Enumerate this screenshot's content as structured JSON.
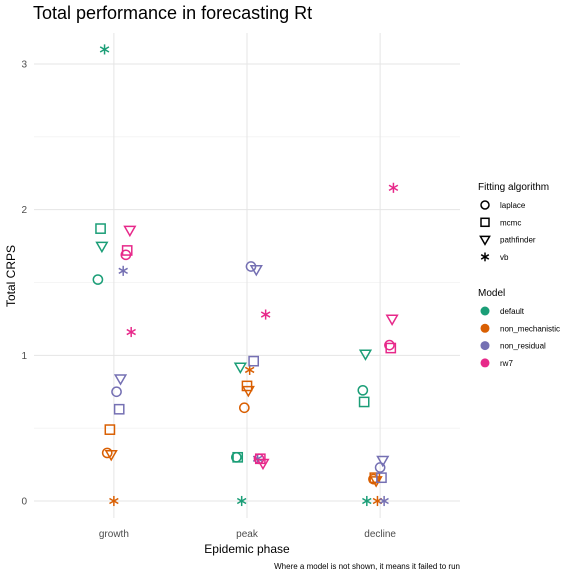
{
  "chart_data": {
    "type": "scatter",
    "title": "Total performance in forecasting Rt",
    "xlabel": "Epidemic phase",
    "ylabel": "Total CRPS",
    "caption": "Where a model is not shown, it means it failed to run",
    "categories": [
      "growth",
      "peak",
      "decline"
    ],
    "ylim": [
      -0.1,
      3.3
    ],
    "yticks": [
      0,
      1,
      2,
      3
    ],
    "grid": true,
    "legend_position": "right",
    "legend": {
      "shape_title": "Fitting algorithm",
      "shapes": [
        {
          "name": "laplace",
          "shape": "circle"
        },
        {
          "name": "mcmc",
          "shape": "square"
        },
        {
          "name": "pathfinder",
          "shape": "triangle-down"
        },
        {
          "name": "vb",
          "shape": "asterisk"
        }
      ],
      "color_title": "Model",
      "colors": [
        {
          "name": "default",
          "color": "#1b9e77"
        },
        {
          "name": "non_mechanistic",
          "color": "#d95f02"
        },
        {
          "name": "non_residual",
          "color": "#7570b3"
        },
        {
          "name": "rw7",
          "color": "#e7298a"
        }
      ]
    },
    "points": [
      {
        "phase": "growth",
        "x": 0.88,
        "y": 1.52,
        "model": "default",
        "algorithm": "laplace"
      },
      {
        "phase": "growth",
        "x": 0.9,
        "y": 1.87,
        "model": "default",
        "algorithm": "mcmc"
      },
      {
        "phase": "growth",
        "x": 0.91,
        "y": 1.75,
        "model": "default",
        "algorithm": "pathfinder"
      },
      {
        "phase": "growth",
        "x": 0.93,
        "y": 3.1,
        "model": "default",
        "algorithm": "vb"
      },
      {
        "phase": "growth",
        "x": 0.95,
        "y": 0.33,
        "model": "non_mechanistic",
        "algorithm": "laplace"
      },
      {
        "phase": "growth",
        "x": 0.97,
        "y": 0.49,
        "model": "non_mechanistic",
        "algorithm": "mcmc"
      },
      {
        "phase": "growth",
        "x": 0.98,
        "y": 0.32,
        "model": "non_mechanistic",
        "algorithm": "pathfinder"
      },
      {
        "phase": "growth",
        "x": 1.0,
        "y": 0.0,
        "model": "non_mechanistic",
        "algorithm": "vb"
      },
      {
        "phase": "growth",
        "x": 1.02,
        "y": 0.75,
        "model": "non_residual",
        "algorithm": "laplace"
      },
      {
        "phase": "growth",
        "x": 1.04,
        "y": 0.63,
        "model": "non_residual",
        "algorithm": "mcmc"
      },
      {
        "phase": "growth",
        "x": 1.05,
        "y": 0.84,
        "model": "non_residual",
        "algorithm": "pathfinder"
      },
      {
        "phase": "growth",
        "x": 1.07,
        "y": 1.58,
        "model": "non_residual",
        "algorithm": "vb"
      },
      {
        "phase": "growth",
        "x": 1.09,
        "y": 1.69,
        "model": "rw7",
        "algorithm": "laplace"
      },
      {
        "phase": "growth",
        "x": 1.1,
        "y": 1.72,
        "model": "rw7",
        "algorithm": "mcmc"
      },
      {
        "phase": "growth",
        "x": 1.12,
        "y": 1.86,
        "model": "rw7",
        "algorithm": "pathfinder"
      },
      {
        "phase": "growth",
        "x": 1.13,
        "y": 1.16,
        "model": "rw7",
        "algorithm": "vb"
      },
      {
        "phase": "peak",
        "x": 1.92,
        "y": 0.3,
        "model": "default",
        "algorithm": "laplace"
      },
      {
        "phase": "peak",
        "x": 1.93,
        "y": 0.3,
        "model": "default",
        "algorithm": "mcmc"
      },
      {
        "phase": "peak",
        "x": 1.95,
        "y": 0.92,
        "model": "default",
        "algorithm": "pathfinder"
      },
      {
        "phase": "peak",
        "x": 1.96,
        "y": 0.0,
        "model": "default",
        "algorithm": "vb"
      },
      {
        "phase": "peak",
        "x": 1.98,
        "y": 0.64,
        "model": "non_mechanistic",
        "algorithm": "laplace"
      },
      {
        "phase": "peak",
        "x": 2.0,
        "y": 0.79,
        "model": "non_mechanistic",
        "algorithm": "mcmc"
      },
      {
        "phase": "peak",
        "x": 2.01,
        "y": 0.76,
        "model": "non_mechanistic",
        "algorithm": "pathfinder"
      },
      {
        "phase": "peak",
        "x": 2.02,
        "y": 0.9,
        "model": "non_mechanistic",
        "algorithm": "vb"
      },
      {
        "phase": "peak",
        "x": 2.03,
        "y": 1.61,
        "model": "non_residual",
        "algorithm": "laplace"
      },
      {
        "phase": "peak",
        "x": 2.05,
        "y": 0.96,
        "model": "non_residual",
        "algorithm": "mcmc"
      },
      {
        "phase": "peak",
        "x": 2.07,
        "y": 1.59,
        "model": "non_residual",
        "algorithm": "pathfinder"
      },
      {
        "phase": "peak",
        "x": 2.08,
        "y": 0.29,
        "model": "non_residual",
        "algorithm": "vb"
      },
      {
        "phase": "peak",
        "x": 2.09,
        "y": 0.29,
        "model": "rw7",
        "algorithm": "laplace"
      },
      {
        "phase": "peak",
        "x": 2.1,
        "y": 0.29,
        "model": "rw7",
        "algorithm": "mcmc"
      },
      {
        "phase": "peak",
        "x": 2.12,
        "y": 0.26,
        "model": "rw7",
        "algorithm": "pathfinder"
      },
      {
        "phase": "peak",
        "x": 2.14,
        "y": 1.28,
        "model": "rw7",
        "algorithm": "vb"
      },
      {
        "phase": "decline",
        "x": 2.87,
        "y": 0.76,
        "model": "default",
        "algorithm": "laplace"
      },
      {
        "phase": "decline",
        "x": 2.88,
        "y": 0.68,
        "model": "default",
        "algorithm": "mcmc"
      },
      {
        "phase": "decline",
        "x": 2.89,
        "y": 1.01,
        "model": "default",
        "algorithm": "pathfinder"
      },
      {
        "phase": "decline",
        "x": 2.9,
        "y": 0.0,
        "model": "default",
        "algorithm": "vb"
      },
      {
        "phase": "decline",
        "x": 2.95,
        "y": 0.15,
        "model": "non_mechanistic",
        "algorithm": "laplace"
      },
      {
        "phase": "decline",
        "x": 2.96,
        "y": 0.16,
        "model": "non_mechanistic",
        "algorithm": "mcmc"
      },
      {
        "phase": "decline",
        "x": 2.97,
        "y": 0.14,
        "model": "non_mechanistic",
        "algorithm": "pathfinder"
      },
      {
        "phase": "decline",
        "x": 2.98,
        "y": 0.0,
        "model": "non_mechanistic",
        "algorithm": "vb"
      },
      {
        "phase": "decline",
        "x": 3.0,
        "y": 0.23,
        "model": "non_residual",
        "algorithm": "laplace"
      },
      {
        "phase": "decline",
        "x": 3.01,
        "y": 0.16,
        "model": "non_residual",
        "algorithm": "mcmc"
      },
      {
        "phase": "decline",
        "x": 3.02,
        "y": 0.28,
        "model": "non_residual",
        "algorithm": "pathfinder"
      },
      {
        "phase": "decline",
        "x": 3.03,
        "y": 0.0,
        "model": "non_residual",
        "algorithm": "vb"
      },
      {
        "phase": "decline",
        "x": 3.07,
        "y": 1.07,
        "model": "rw7",
        "algorithm": "laplace"
      },
      {
        "phase": "decline",
        "x": 3.08,
        "y": 1.05,
        "model": "rw7",
        "algorithm": "mcmc"
      },
      {
        "phase": "decline",
        "x": 3.09,
        "y": 1.25,
        "model": "rw7",
        "algorithm": "pathfinder"
      },
      {
        "phase": "decline",
        "x": 3.1,
        "y": 2.15,
        "model": "rw7",
        "algorithm": "vb"
      }
    ]
  }
}
